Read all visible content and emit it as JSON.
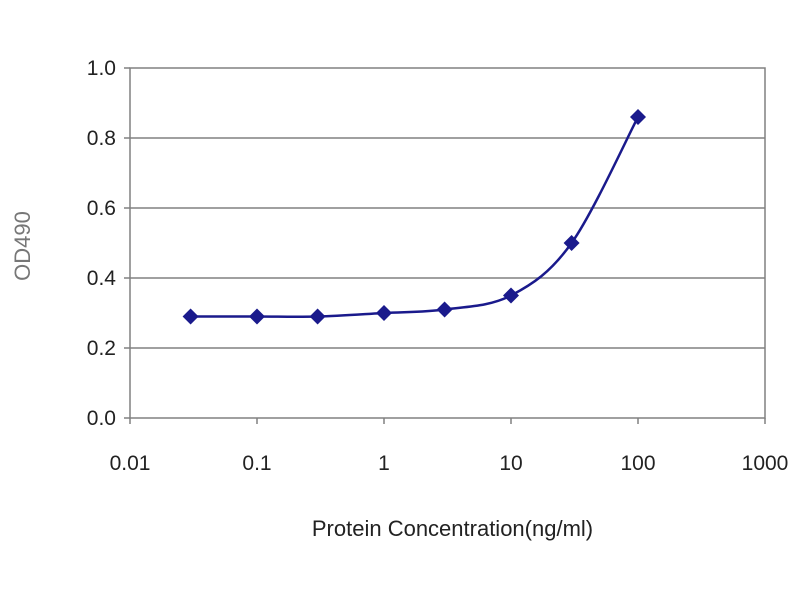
{
  "chart_data": {
    "type": "line",
    "xscale": "log",
    "xlabel": "Protein Concentration(ng/ml)",
    "ylabel": "OD490",
    "xlim": [
      0.01,
      1000
    ],
    "ylim": [
      0.0,
      1.0
    ],
    "x_ticks": [
      "0.01",
      "0.1",
      "1",
      "10",
      "100",
      "1000"
    ],
    "y_ticks": [
      "0.0",
      "0.2",
      "0.4",
      "0.6",
      "0.8",
      "1.0"
    ],
    "grid": true,
    "legend": "none",
    "series": [
      {
        "color": "#1a1a8c",
        "marker": "diamond",
        "x": [
          0.03,
          0.1,
          0.3,
          1,
          3,
          10,
          30,
          100
        ],
        "y": [
          0.29,
          0.29,
          0.29,
          0.3,
          0.31,
          0.35,
          0.5,
          0.86
        ]
      }
    ]
  }
}
